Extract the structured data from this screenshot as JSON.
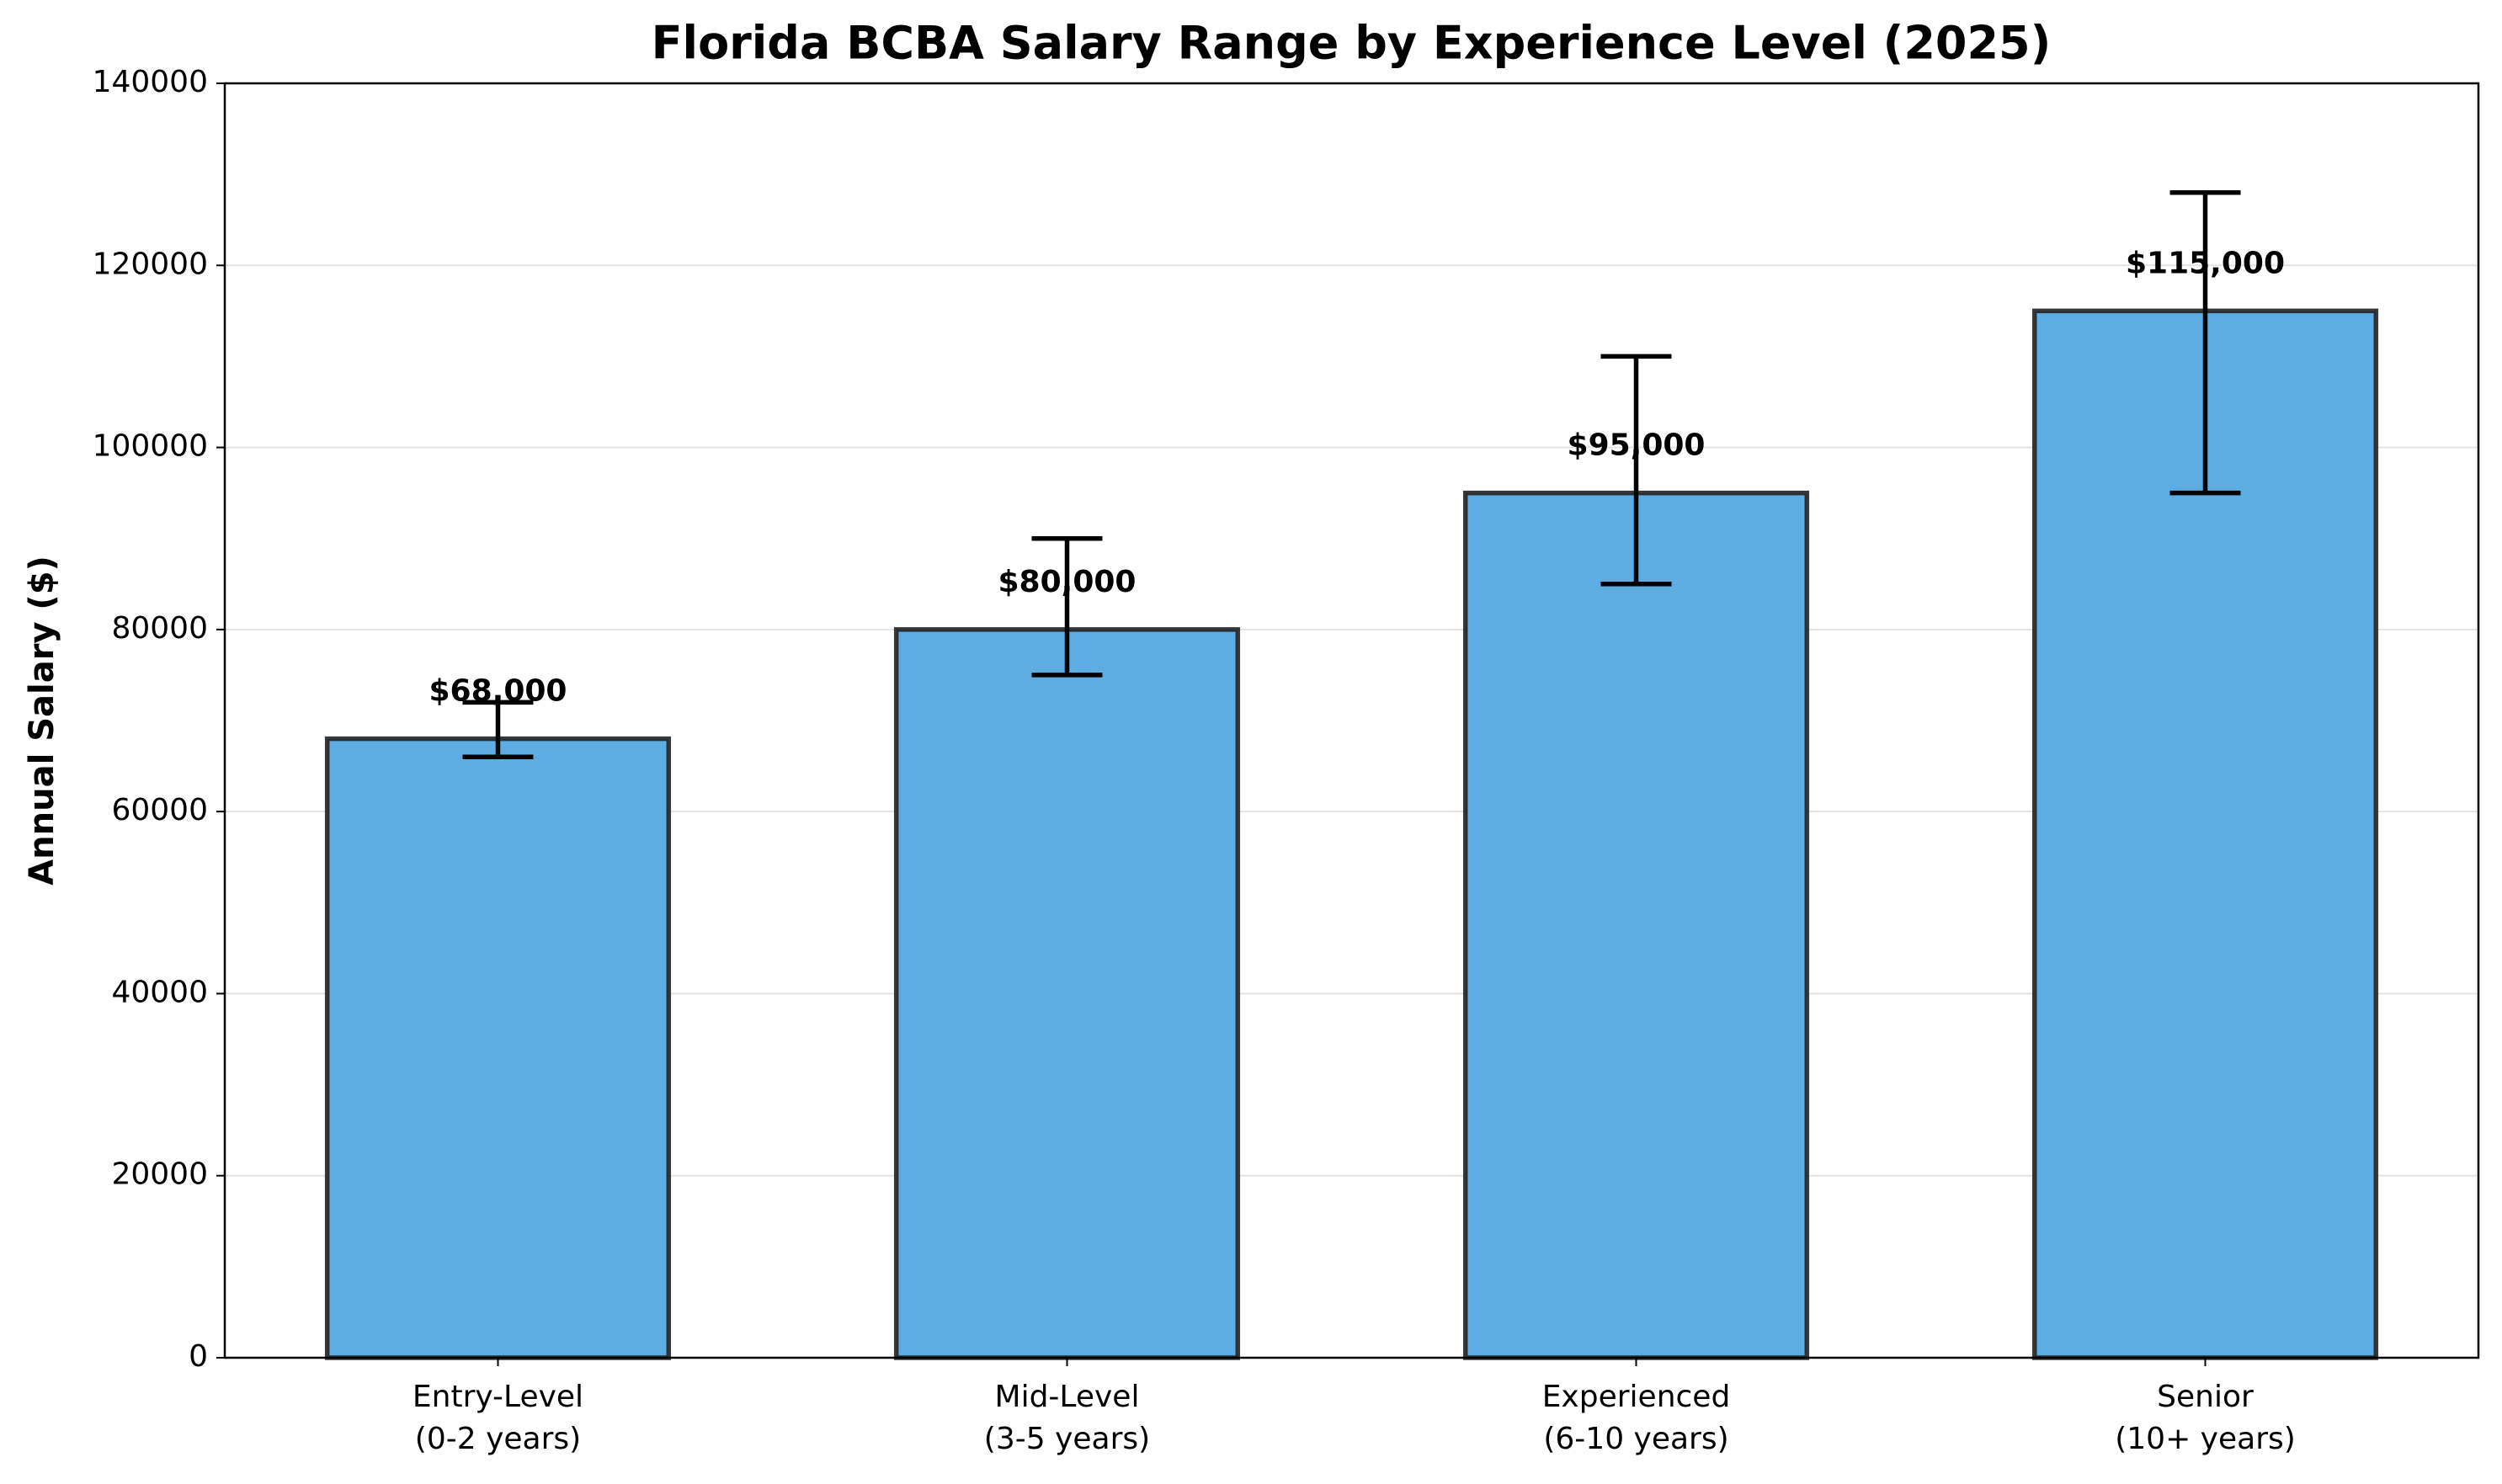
{
  "chart_data": {
    "type": "bar",
    "title": "Florida BCBA Salary Range by Experience Level (2025)",
    "y_label": "Annual Salary ($)",
    "categories": [
      [
        "Entry-Level",
        "(0-2 years)"
      ],
      [
        "Mid-Level",
        "(3-5 years)"
      ],
      [
        "Experienced",
        "(6-10 years)"
      ],
      [
        "Senior",
        "(10+ years)"
      ]
    ],
    "values": [
      68000,
      80000,
      95000,
      115000
    ],
    "value_labels": [
      "$68,000",
      "$80,000",
      "$95,000",
      "$115,000"
    ],
    "range_low": [
      66000,
      75000,
      85000,
      95000
    ],
    "range_high": [
      72000,
      90000,
      110000,
      128000
    ],
    "color": "#5dade2",
    "ylim": [
      0,
      140000
    ],
    "yticks": [
      0,
      20000,
      40000,
      60000,
      80000,
      100000,
      120000,
      140000
    ],
    "grid": true
  }
}
